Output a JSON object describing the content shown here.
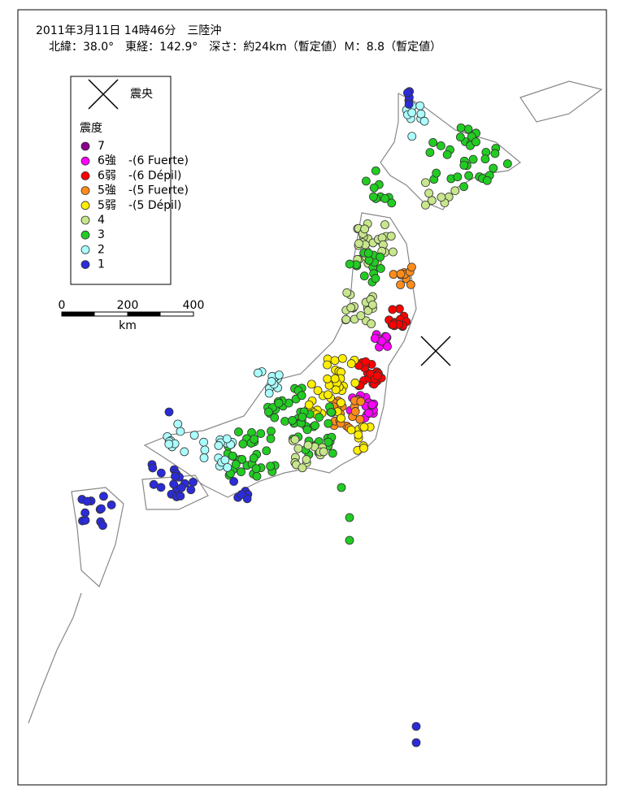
{
  "header": {
    "line1": "2011年3月11日 14時46分　三陸沖",
    "line2": "北緯：38.0°　東経：142.9°　深さ：約24km（暫定値）Ｍ：8.8（暫定値）"
  },
  "legend": {
    "epicenter": "震央",
    "title": "震度",
    "items": [
      {
        "label": "7",
        "color": "#8b008b"
      },
      {
        "label": "6強",
        "color": "#ff00ff",
        "note": "-(6 Fuerte)"
      },
      {
        "label": "6弱",
        "color": "#ff0000",
        "note": "-(6 Dépil)"
      },
      {
        "label": "5強",
        "color": "#ff8c1a",
        "note": "-(5 Fuerte)"
      },
      {
        "label": "5弱",
        "color": "#ffee00",
        "note": "-(5 Dépil)"
      },
      {
        "label": "4",
        "color": "#c8e68c"
      },
      {
        "label": "3",
        "color": "#22cc22"
      },
      {
        "label": "2",
        "color": "#aaffff"
      },
      {
        "label": "1",
        "color": "#2b2bd9"
      }
    ]
  },
  "scale": {
    "ticks": [
      0,
      200,
      400
    ],
    "unit": "km"
  }
}
